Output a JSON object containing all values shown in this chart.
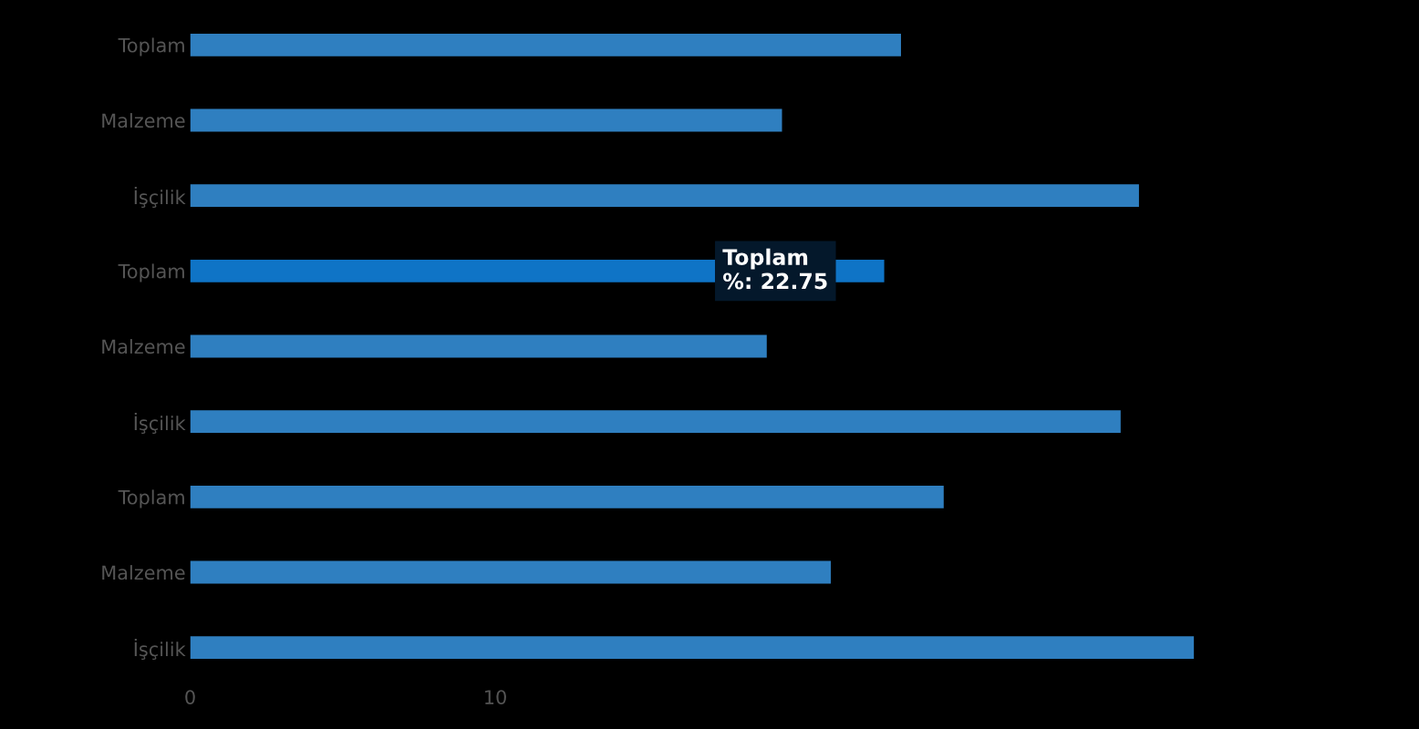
{
  "chart_data": {
    "type": "bar",
    "orientation": "horizontal",
    "categories": [
      "Toplam",
      "Malzeme",
      "İşçilik",
      "Toplam",
      "Malzeme",
      "İşçilik",
      "Toplam",
      "Malzeme",
      "İşçilik"
    ],
    "values": [
      23.3,
      19.4,
      31.1,
      22.75,
      18.9,
      30.5,
      24.7,
      21.0,
      32.9
    ],
    "colors": [
      "#2f7fc0",
      "#2f7fc0",
      "#2f7fc0",
      "#0f74c6",
      "#2f7fc0",
      "#2f7fc0",
      "#2f7fc0",
      "#2f7fc0",
      "#2f7fc0"
    ],
    "xlim": [
      0,
      40
    ],
    "xticks": [
      0,
      10
    ],
    "annotations": [
      "Toplam\n%: 22.75"
    ],
    "grid": false
  }
}
